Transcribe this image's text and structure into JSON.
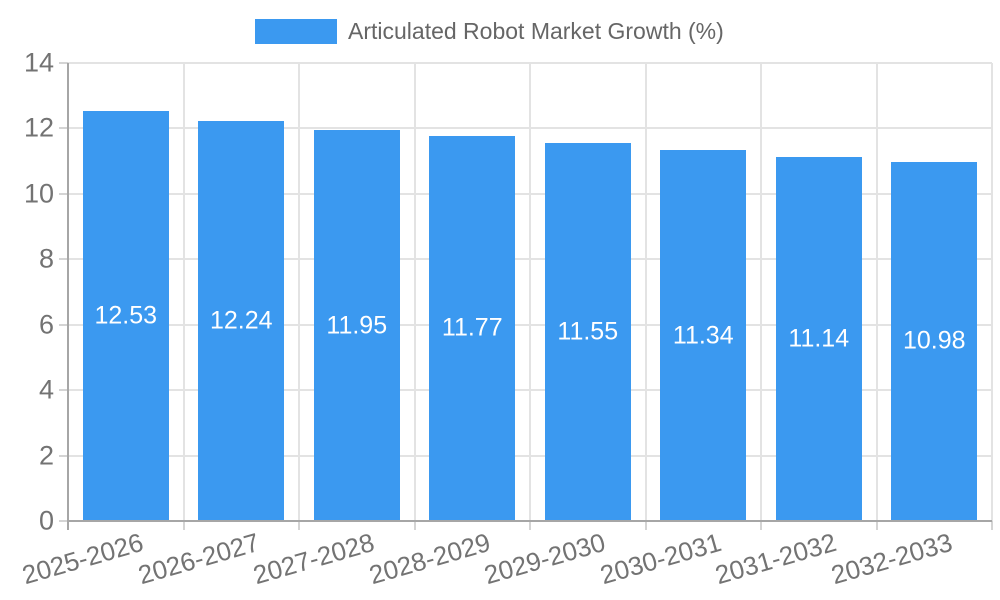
{
  "legend": {
    "label": "Articulated Robot Market Growth (%)"
  },
  "chart_data": {
    "type": "bar",
    "categories": [
      "2025-2026",
      "2026-2027",
      "2027-2028",
      "2028-2029",
      "2029-2030",
      "2030-2031",
      "2031-2032",
      "2032-2033"
    ],
    "values": [
      12.53,
      12.24,
      11.95,
      11.77,
      11.55,
      11.34,
      11.14,
      10.98
    ],
    "bar_labels": [
      "12.53",
      "12.24",
      "11.95",
      "11.77",
      "11.55",
      "11.34",
      "11.14",
      "10.98"
    ],
    "title": "",
    "xlabel": "",
    "ylabel": "",
    "ylim": [
      0,
      14
    ],
    "yticks": [
      0,
      2,
      4,
      6,
      8,
      10,
      12,
      14
    ],
    "grid": true,
    "legend_position": "top",
    "bar_color": "#3b99f0",
    "bar_label_color": "#ffffff",
    "axis_color": "#a6a6a6",
    "gridline_color": "#e3e3e3",
    "tick_label_color": "#737373"
  }
}
